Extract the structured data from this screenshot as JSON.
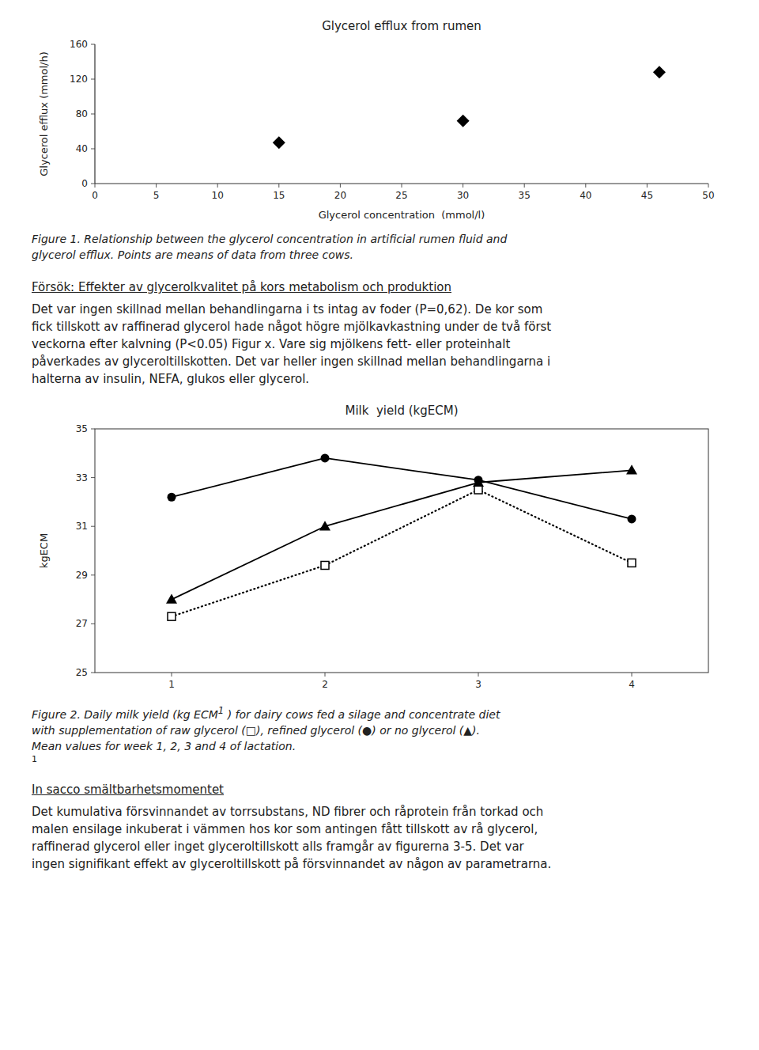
{
  "chart_data": [
    {
      "type": "scatter",
      "title": "Glycerol efflux from rumen",
      "x": [
        15,
        30,
        46
      ],
      "values": [
        47,
        72,
        128
      ],
      "x_label": "Glycerol concentration  (mmol/l)",
      "y_label": "Glycerol efflux (mmol/h)",
      "xlim": [
        0,
        50
      ],
      "ylim": [
        0,
        160
      ],
      "xticks": [
        0,
        5,
        10,
        15,
        20,
        25,
        30,
        35,
        40,
        45,
        50
      ],
      "yticks": [
        0,
        40,
        80,
        120,
        160
      ],
      "marker": "diamond",
      "color": "black",
      "grid": false,
      "caption": [
        {
          "text": "Figure 1. Relationship between the glycerol concentration in artificial rumen fluid and\nglycerol efflux. Points are means of data from three cows.",
          "superscript": false
        }
      ]
    },
    {
      "type": "line",
      "title": "Milk  yield (kgECM)",
      "y_label": "kgECM",
      "x": [
        1,
        2,
        3,
        4
      ],
      "xlim": [
        0.5,
        4.5
      ],
      "xticks": [
        1,
        2,
        3,
        4
      ],
      "ylim": [
        25,
        35
      ],
      "yticks": [
        25,
        27,
        29,
        31,
        33,
        35
      ],
      "grid": false,
      "series": [
        {
          "values": [
            27.3,
            29.4,
            32.5,
            29.5
          ],
          "color": "black",
          "marker": "open-square",
          "line_style": "dotted"
        },
        {
          "values": [
            32.2,
            33.8,
            32.9,
            31.3
          ],
          "color": "black",
          "marker": "circle",
          "line_style": "solid"
        },
        {
          "values": [
            28.0,
            31.0,
            32.8,
            33.3
          ],
          "color": "black",
          "marker": "triangle",
          "line_style": "solid"
        }
      ],
      "caption": [
        {
          "text": "Figure 2. Daily milk yield (kg ECM",
          "superscript": false
        },
        {
          "text": "1",
          "superscript": true
        },
        {
          "text": " ) for dairy cows fed a silage and concentrate diet\nwith supplementation of raw glycerol (□), refined glycerol (●) or no glycerol (▲).\nMean values for week 1, 2, 3 and 4 of lactation.",
          "superscript": false
        }
      ],
      "footnote": "1"
    }
  ],
  "paragraphs": [
    {
      "title": "Försök: Effekter av glycerolkvalitet på kors metabolism och produktion",
      "text": "Det var ingen skillnad mellan behandlingarna i ts intag av foder (P=0,62). De kor som\nfick tillskott av raffinerad glycerol hade något högre mjölkavkastning under de två först\nveckorna efter kalvning (P<0.05) Figur x. Vare sig mjölkens fett- eller proteinhalt\npåverkades av glyceroltillskotten. Det var heller ingen skillnad mellan behandlingarna i\nhalterna av insulin, NEFA, glukos eller glycerol."
    },
    {
      "title": "In sacco smältbarhetsmomentet",
      "text": "Det kumulativa försvinnandet av torrsubstans, ND fibrer och råprotein från torkad och\nmalen ensilage inkuberat i vämmen hos kor som antingen fått tillskott av rå glycerol,\nraffinerad glycerol eller inget glyceroltillskott alls framgår av figurerna 3-5. Det var\ningen signifikant effekt av glyceroltillskott på försvinnandet av någon av parametrarna."
    }
  ]
}
